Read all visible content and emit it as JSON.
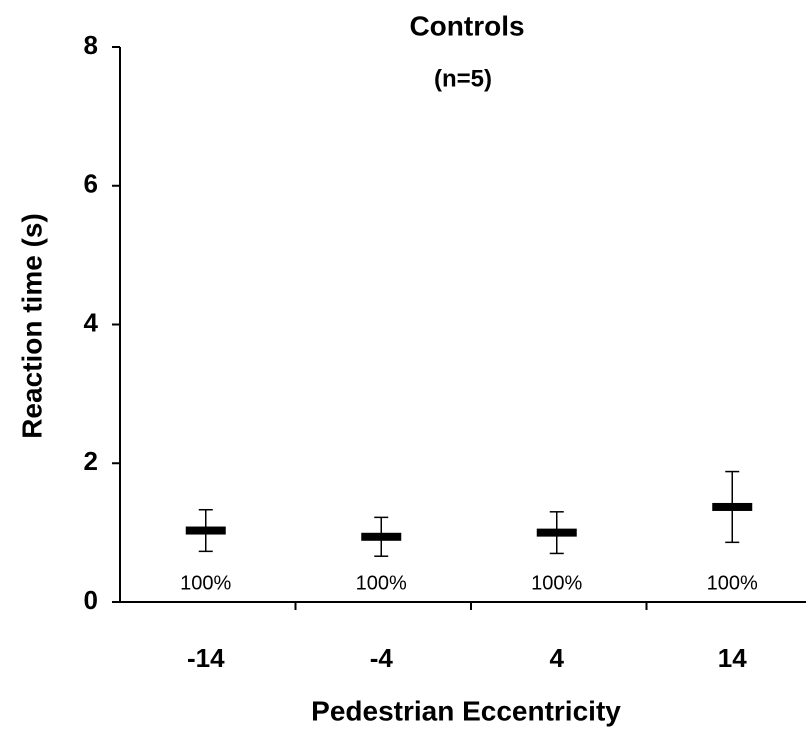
{
  "chart_data": {
    "type": "errorbar",
    "title": "Controls",
    "subtitle": "(n=5)",
    "x_label": "Pedestrian Eccentricity",
    "y_label": "Reaction time (s)",
    "categories": [
      "-14",
      "-4",
      "4",
      "14"
    ],
    "values": [
      1.03,
      0.94,
      1.0,
      1.37
    ],
    "errors": [
      0.3,
      0.28,
      0.3,
      0.51
    ],
    "annotations": [
      "100%",
      "100%",
      "100%",
      "100%"
    ],
    "color": "#000000",
    "ylim": [
      0,
      8
    ],
    "yticks": [
      0,
      2,
      4,
      6,
      8
    ]
  }
}
